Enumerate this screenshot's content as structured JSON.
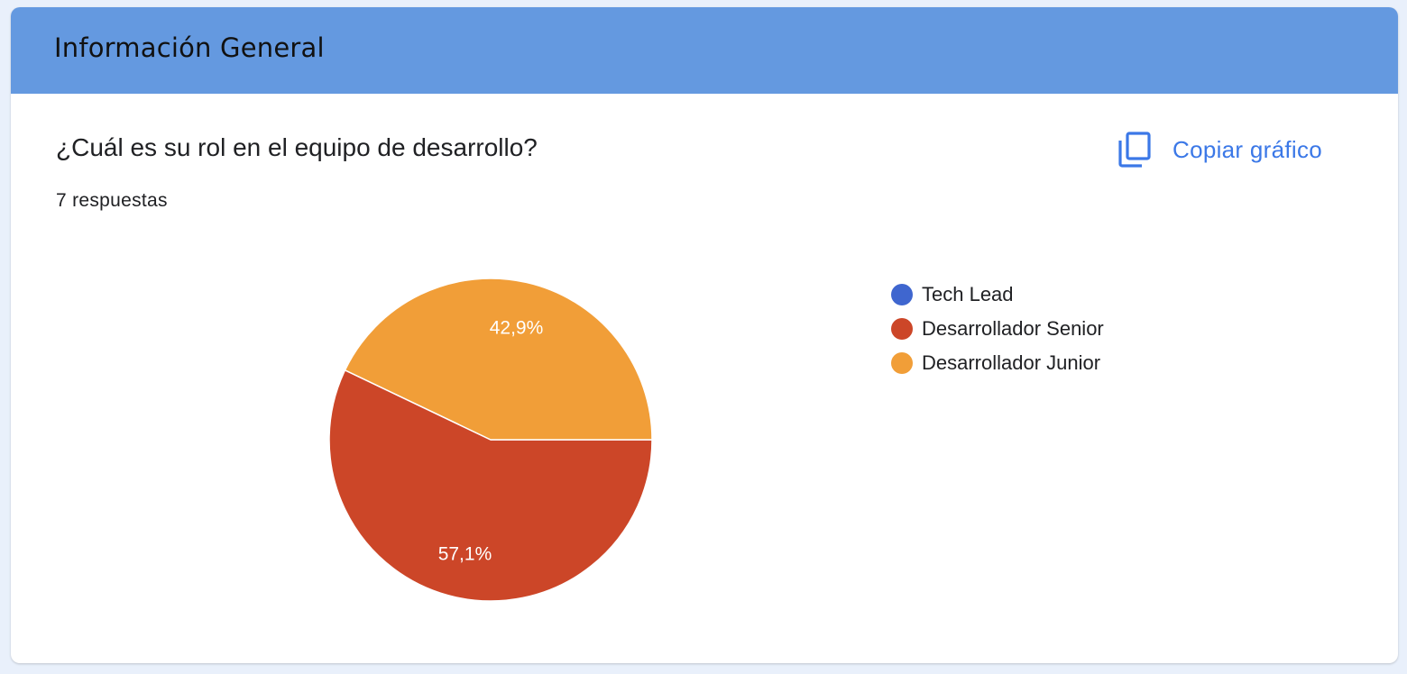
{
  "section": {
    "title": "Información General"
  },
  "question": {
    "title": "¿Cuál es su rol en el equipo de desarrollo?",
    "response_count": "7 respuestas",
    "copy_label": "Copiar gráfico",
    "copy_icon": "copy-icon"
  },
  "colors": {
    "header_bg": "#6499e0",
    "accent": "#3b78e7",
    "tech_lead": "#3f66cf",
    "senior": "#cc4628",
    "junior": "#f19e38"
  },
  "chart_data": {
    "type": "pie",
    "title": "",
    "categories": [
      "Tech Lead",
      "Desarrollador Senior",
      "Desarrollador Junior"
    ],
    "values": [
      0,
      57.1,
      42.9
    ],
    "labels": [
      "",
      "57,1%",
      "42,9%"
    ],
    "colors": [
      "#3f66cf",
      "#cc4628",
      "#f19e38"
    ],
    "legend_position": "right"
  }
}
